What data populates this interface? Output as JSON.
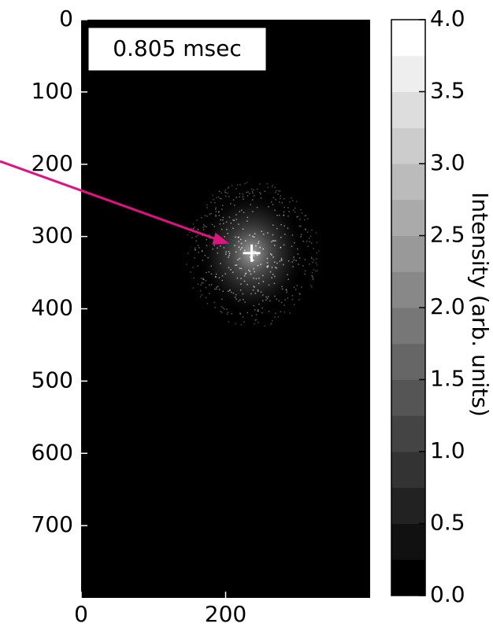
{
  "chart_data": {
    "type": "image",
    "annotation": "0.805 msec",
    "xlim": [
      0,
      400
    ],
    "ylim": [
      0,
      800
    ],
    "y_inverted": true,
    "xticks": [
      0,
      200
    ],
    "yticks": [
      0,
      100,
      200,
      300,
      400,
      500,
      600,
      700
    ],
    "marker": {
      "x": 236,
      "y": 323,
      "color": "#ffffff"
    },
    "arrow_color": "#e0127f",
    "colorbar": {
      "label": "Intensity (arb. units)",
      "lim": [
        0,
        4
      ],
      "levels": 16,
      "ticks": [
        {
          "value": 0,
          "label": "0.0"
        },
        {
          "value": 0.5,
          "label": "0.5"
        },
        {
          "value": 1,
          "label": "1.0"
        },
        {
          "value": 1.5,
          "label": "1.5"
        },
        {
          "value": 2,
          "label": "2.0"
        },
        {
          "value": 2.5,
          "label": "2.5"
        },
        {
          "value": 3,
          "label": "3.0"
        },
        {
          "value": 3.5,
          "label": "3.5"
        },
        {
          "value": 4,
          "label": "4.0"
        }
      ]
    }
  }
}
